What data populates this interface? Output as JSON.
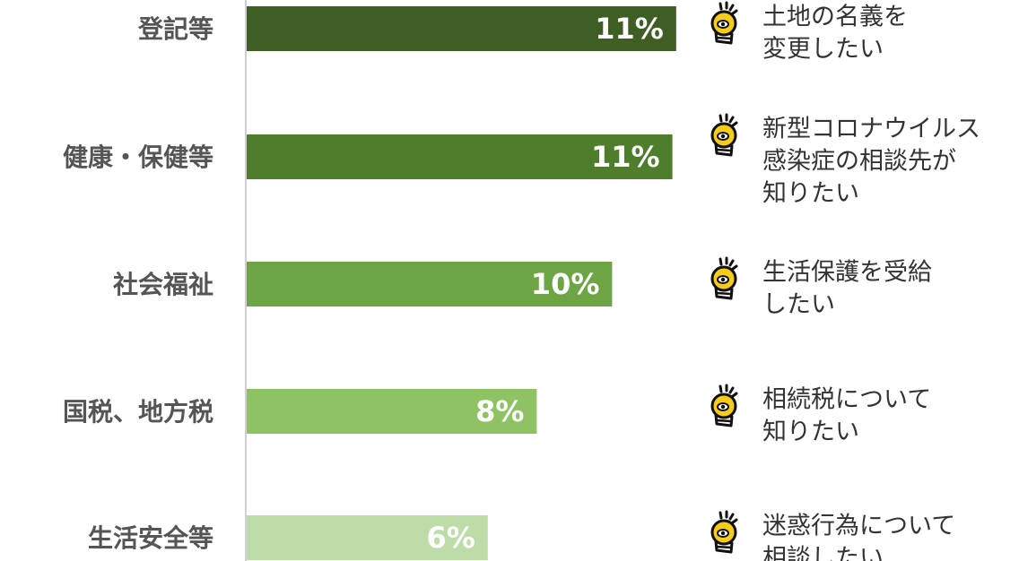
{
  "chart_data": {
    "type": "bar",
    "orientation": "horizontal",
    "categories": [
      "登記等",
      "健康・保健等",
      "社会福祉",
      "国税、地方税",
      "生活安全等"
    ],
    "values": [
      11.4,
      11.3,
      9.7,
      7.7,
      6.4
    ],
    "value_labels": [
      "11%",
      "11%",
      "10%",
      "8%",
      "6%"
    ],
    "colors": [
      "#3e5e24",
      "#4e7d2c",
      "#6ea544",
      "#8fc262",
      "#bedca8"
    ],
    "xlim": [
      0,
      20
    ],
    "notes": [
      [
        "土地の名義を",
        "変更したい"
      ],
      [
        "新型コロナウイルス",
        "感染症の相談先が",
        "知りたい"
      ],
      [
        "生活保護を受給",
        "したい"
      ],
      [
        "相続税について",
        "知りたい"
      ],
      [
        "迷惑行為について",
        "相談したい"
      ]
    ]
  }
}
